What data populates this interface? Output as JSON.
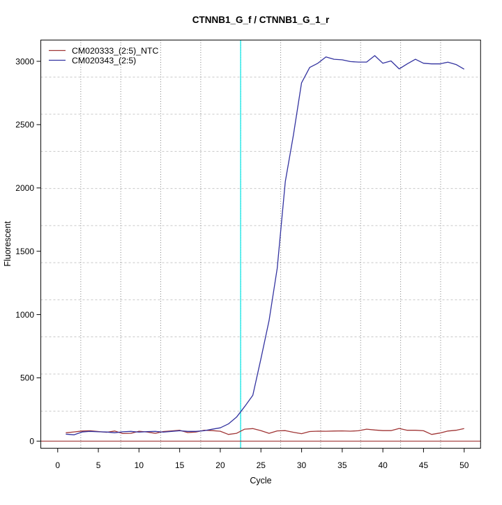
{
  "window": {
    "background": "#ffffff"
  },
  "chart_data": {
    "type": "line",
    "title": "CTNNB1_G_f / CTNNB1_G_1_r",
    "xlabel": "Cycle",
    "ylabel": "Fluorescent",
    "x": [
      1,
      2,
      3,
      4,
      5,
      6,
      7,
      8,
      9,
      10,
      11,
      12,
      13,
      14,
      15,
      16,
      17,
      18,
      19,
      20,
      21,
      22,
      23,
      24,
      25,
      26,
      27,
      28,
      29,
      30,
      31,
      32,
      33,
      34,
      35,
      36,
      37,
      38,
      39,
      40,
      41,
      42,
      43,
      44,
      45,
      46,
      47,
      48,
      49,
      50
    ],
    "series": [
      {
        "name": "CM020333_(2:5)_NTC",
        "color": "#A03535",
        "values": [
          66,
          73,
          80,
          82,
          76,
          70,
          80,
          60,
          62,
          78,
          72,
          62,
          76,
          81,
          86,
          68,
          72,
          86,
          83,
          78,
          53,
          62,
          95,
          99,
          83,
          62,
          81,
          83,
          70,
          59,
          76,
          79,
          78,
          80,
          81,
          79,
          82,
          95,
          88,
          83,
          83,
          100,
          86,
          86,
          82,
          53,
          64,
          80,
          86,
          99
        ]
      },
      {
        "name": "CM020343_(2:5)",
        "color": "#3333A0",
        "values": [
          55,
          50,
          72,
          77,
          74,
          72,
          66,
          74,
          77,
          71,
          75,
          77,
          71,
          77,
          82,
          77,
          77,
          82,
          94,
          105,
          136,
          190,
          273,
          362,
          650,
          952,
          1365,
          2050,
          2420,
          2830,
          2952,
          2985,
          3035,
          3016,
          3012,
          2998,
          2994,
          2994,
          3045,
          2985,
          3003,
          2940,
          2980,
          3016,
          2985,
          2980,
          2980,
          2993,
          2975,
          2938
        ]
      }
    ],
    "ct_marker_line": {
      "x": 22.5,
      "color": "#00E6E6",
      "orientation": "vertical"
    },
    "zero_line": {
      "y": 0,
      "color": "#A03535",
      "orientation": "horizontal"
    },
    "xlim": [
      -2.08,
      52.02
    ],
    "ylim": [
      -56,
      3168
    ],
    "xticks": [
      0,
      5,
      10,
      15,
      20,
      25,
      30,
      35,
      40,
      45,
      50
    ],
    "yticks": [
      0,
      500,
      1000,
      1500,
      2000,
      2500,
      3000
    ],
    "grid": {
      "on": true,
      "nx": 11,
      "ny": 11,
      "h_color": "#c8c8c8",
      "v_color": "#7d7d7d"
    },
    "legend_position": "top-left",
    "box_color": "#1a1a1a"
  }
}
